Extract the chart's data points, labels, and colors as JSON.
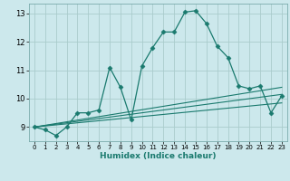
{
  "title": "",
  "xlabel": "Humidex (Indice chaleur)",
  "bg_color": "#cce8ec",
  "grid_color": "#aacccc",
  "line_color": "#1a7a6e",
  "xlim": [
    -0.5,
    23.5
  ],
  "ylim": [
    8.5,
    13.35
  ],
  "xticks": [
    0,
    1,
    2,
    3,
    4,
    5,
    6,
    7,
    8,
    9,
    10,
    11,
    12,
    13,
    14,
    15,
    16,
    17,
    18,
    19,
    20,
    21,
    22,
    23
  ],
  "yticks": [
    9,
    10,
    11,
    12,
    13
  ],
  "main_x": [
    0,
    1,
    2,
    3,
    4,
    5,
    6,
    7,
    8,
    9,
    10,
    11,
    12,
    13,
    14,
    15,
    16,
    17,
    18,
    19,
    20,
    21,
    22,
    23
  ],
  "main_y": [
    9.0,
    8.9,
    8.7,
    9.0,
    9.5,
    9.5,
    9.6,
    11.1,
    10.4,
    9.25,
    11.15,
    11.8,
    12.35,
    12.35,
    13.05,
    13.1,
    12.65,
    11.85,
    11.45,
    10.45,
    10.35,
    10.45,
    9.5,
    10.1
  ],
  "line1_x": [
    0,
    23
  ],
  "line1_y": [
    9.0,
    10.4
  ],
  "line2_x": [
    0,
    23
  ],
  "line2_y": [
    9.0,
    10.15
  ],
  "line3_x": [
    0,
    23
  ],
  "line3_y": [
    9.0,
    9.85
  ]
}
